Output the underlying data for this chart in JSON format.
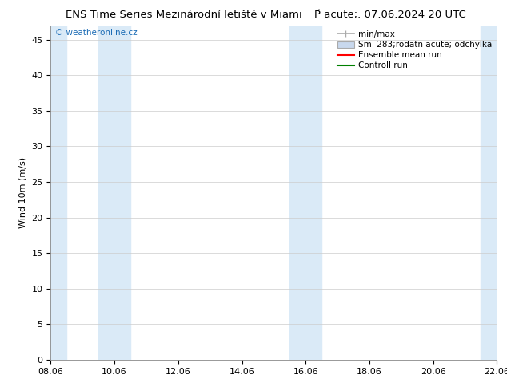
{
  "title_left": "ENS Time Series Mezinárodní letiště v Miami",
  "title_right": "Ṕ acute;. 07.06.2024 20 UTC",
  "ylabel": "Wind 10m (m/s)",
  "watermark": "© weatheronline.cz",
  "xlim_start": 0,
  "xlim_end": 14,
  "ylim_min": 0,
  "ylim_max": 47,
  "yticks": [
    0,
    5,
    10,
    15,
    20,
    25,
    30,
    35,
    40,
    45
  ],
  "xtick_labels": [
    "08.06",
    "10.06",
    "12.06",
    "14.06",
    "16.06",
    "18.06",
    "20.06",
    "22.06"
  ],
  "xtick_positions": [
    0,
    2,
    4,
    6,
    8,
    10,
    12,
    14
  ],
  "bg_color": "#ffffff",
  "plot_bg_color": "#ffffff",
  "shaded_color": "#daeaf7",
  "shaded_regions": [
    [
      0.0,
      0.5
    ],
    [
      1.5,
      2.5
    ],
    [
      7.5,
      8.5
    ],
    [
      13.5,
      14.0
    ]
  ],
  "grid_color": "#cccccc",
  "tick_fontsize": 8,
  "label_fontsize": 8,
  "title_fontsize": 9.5,
  "legend_fontsize": 7.5,
  "legend_label_minmax": "min/max",
  "legend_label_sm": "Sm  283;rodatn acute; odchylka",
  "legend_label_ens": "Ensemble mean run",
  "legend_label_ctrl": "Controll run",
  "minmax_color": "#aaaaaa",
  "sm_facecolor": "#c8d8ed",
  "sm_edgecolor": "#aaaaaa",
  "ens_color": "red",
  "ctrl_color": "green"
}
